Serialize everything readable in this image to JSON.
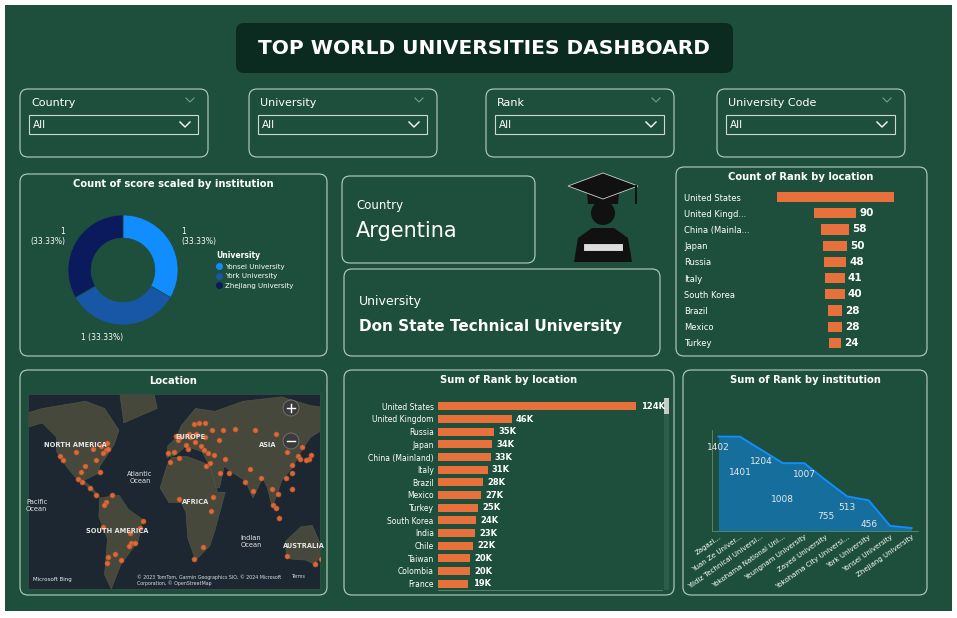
{
  "title": "TOP WORLD UNIVERSITIES DASHBOARD",
  "filters": [
    {
      "label": "Country",
      "value": "All"
    },
    {
      "label": "University",
      "value": "All"
    },
    {
      "label": "Rank",
      "value": "All"
    },
    {
      "label": "University Code",
      "value": "All"
    }
  ],
  "cards": [
    {
      "label": "Country",
      "value": "Argentina"
    },
    {
      "label": "University",
      "value": "Don State Technical University"
    }
  ],
  "chart_data": [
    {
      "type": "donut",
      "title": "Count of score scaled by institution",
      "categories": [
        "Yonsei University",
        "York University",
        "Zhejiang University"
      ],
      "values": [
        1,
        1,
        1
      ],
      "value_labels": [
        "1\n(33.33%)",
        "1 (33.33%)",
        "1\n(33.33%)"
      ],
      "colors": [
        "#118DFF",
        "#1757A6",
        "#0B1A5C"
      ],
      "legend": "right",
      "legend_title": "University"
    },
    {
      "type": "funnel",
      "title": "Count of Rank by location",
      "categories": [
        "United States",
        "United Kingd...",
        "China (Mainla...",
        "Japan",
        "Russia",
        "Italy",
        "South Korea",
        "Brazil",
        "Mexico",
        "Turkey"
      ],
      "values": [
        245,
        90,
        58,
        50,
        48,
        41,
        40,
        28,
        28,
        24
      ],
      "value_labels": [
        null,
        "90",
        "58",
        "50",
        "48",
        "41",
        "40",
        "28",
        "28",
        "24"
      ],
      "color": "#E8703A",
      "tick_labels": "y"
    },
    {
      "type": "map",
      "title": "Location",
      "x": [
        -122,
        -118,
        -87,
        -74,
        -71,
        -84,
        -95,
        -105,
        -80,
        -77,
        -79,
        -73,
        -99,
        -103,
        -100,
        -84,
        -90,
        -74,
        -76,
        -67,
        -77,
        -71,
        -73,
        -58,
        -64,
        -47,
        -43,
        -49,
        -38,
        -48,
        -35,
        -3,
        2,
        13,
        12,
        0,
        4,
        18,
        21,
        24,
        10,
        -9,
        14,
        19,
        26,
        30,
        37,
        30,
        49,
        44,
        61,
        82,
        104,
        29,
        33,
        39,
        35,
        46,
        51,
        55,
        31,
        3,
        -7,
        18,
        28,
        36,
        3,
        38,
        77,
        72,
        80,
        88,
        100,
        106,
        101,
        104,
        107,
        121,
        116,
        121,
        114,
        127,
        129,
        139,
        135,
        141,
        121,
        151,
        145,
        153,
        116,
        131
      ],
      "y": [
        37,
        34,
        42,
        41,
        42,
        34,
        30,
        40,
        26,
        39,
        44,
        46,
        19,
        21,
        26,
        10,
        15,
        5,
        3,
        10,
        -12,
        -33,
        -37,
        -35,
        -31,
        -23,
        -23,
        -25,
        -13,
        -16,
        -8,
        40,
        48,
        52,
        42,
        51,
        50,
        59,
        52,
        60,
        45,
        39,
        50,
        47,
        44,
        50,
        55,
        60,
        55,
        48,
        56,
        55,
        52,
        41,
        39,
        38,
        32,
        25,
        35,
        25,
        30,
        36,
        33,
        -34,
        -26,
        -1,
        7,
        9,
        28,
        19,
        13,
        22,
        14,
        11,
        3,
        1,
        -6,
        14,
        40,
        31,
        22,
        37,
        35,
        35,
        34,
        38,
        25,
        -34,
        -38,
        -27,
        -32,
        43
      ],
      "xlim": [
        -155,
        150
      ],
      "ylim": [
        -55,
        80
      ],
      "tick_labels": false,
      "color": "#E8703A",
      "labels": [
        "NORTH AMERICA",
        "EUROPE",
        "ASIA",
        "AFRICA",
        "SOUTH AMERICA",
        "AUSTRALIA",
        "Pacific\nOcean",
        "Atlantic\nOcean",
        "Indian\nOcean"
      ],
      "attribution": "© 2023 TomTom, Garmin Geographics SIO, © 2024 Microsoft\nCorporation, © OpenStreetMap",
      "terms": "Terms",
      "logo": "Microsoft Bing"
    },
    {
      "type": "bar",
      "orientation": "horizontal",
      "title": "Sum of Rank by location",
      "categories": [
        "United States",
        "United Kingdom",
        "Russia",
        "Japan",
        "China (Mainland)",
        "Italy",
        "Brazil",
        "Mexico",
        "Turkey",
        "South Korea",
        "India",
        "Chile",
        "Taiwan",
        "Colombia",
        "France"
      ],
      "values": [
        124000,
        46000,
        35000,
        34000,
        33000,
        31000,
        28000,
        27000,
        25000,
        24000,
        23000,
        22000,
        20000,
        20000,
        19000
      ],
      "value_labels": [
        "124K",
        "46K",
        "35K",
        "34K",
        "33K",
        "31K",
        "28K",
        "27K",
        "25K",
        "24K",
        "23K",
        "22K",
        "20K",
        "20K",
        "19K"
      ],
      "color": "#E8703A",
      "xlim": [
        0,
        140000
      ],
      "xticks": [],
      "tick_labels": "y"
    },
    {
      "type": "area",
      "title": "Sum of Rank by institution",
      "categories": [
        "Zagazi...",
        "Yuan Ze Univer...",
        "Yildiz Technical Universi...",
        "Yokohama National Uni...",
        "Yeungnam University",
        "Zayed University",
        "Yokohama City Universi...",
        "York University",
        "Yonsei University",
        "Zhejiang University"
      ],
      "values": [
        1402,
        1401,
        1204,
        1008,
        1007,
        755,
        513,
        456,
        76,
        44
      ],
      "value_labels": [
        "1402",
        "1401",
        "1204",
        "1008",
        "1007",
        "755",
        "513",
        "456",
        null,
        null
      ],
      "color": "#118DFF",
      "ylim": [
        0,
        1500
      ],
      "yticks": [],
      "tick_labels": "x"
    }
  ]
}
